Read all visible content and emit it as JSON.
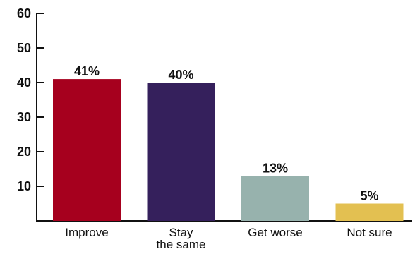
{
  "chart_data": {
    "type": "bar",
    "categories": [
      "Improve",
      "Stay the same",
      "Get worse",
      "Not sure"
    ],
    "category_lines": [
      [
        "Improve"
      ],
      [
        "Stay",
        "the same"
      ],
      [
        "Get worse"
      ],
      [
        "Not sure"
      ]
    ],
    "values": [
      41,
      40,
      13,
      5
    ],
    "value_labels": [
      "41%",
      "40%",
      "13%",
      "5%"
    ],
    "colors": [
      "#a6001e",
      "#35205c",
      "#97b2ad",
      "#e3c051"
    ],
    "title": "",
    "xlabel": "",
    "ylabel": "",
    "ylim": [
      0,
      60
    ],
    "yticks": [
      10,
      20,
      30,
      40,
      50,
      60
    ],
    "ytick_labels": [
      "10",
      "20",
      "30",
      "40",
      "50",
      "60"
    ],
    "grid": false,
    "legend": "none"
  }
}
